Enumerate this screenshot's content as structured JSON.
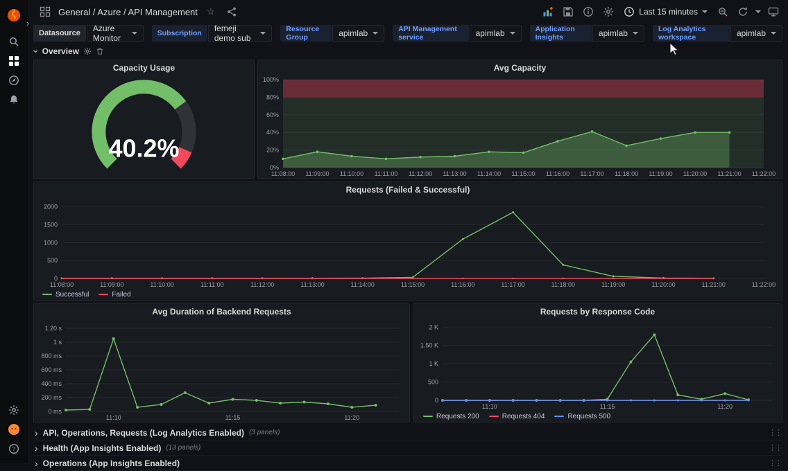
{
  "icons": {
    "star": "☆",
    "chevron": "›",
    "drag_handle": "⋮⋮",
    "help": "?"
  },
  "header": {
    "breadcrumb": "General / Azure / API Management",
    "time_range": "Last 15 minutes"
  },
  "variables": [
    {
      "label": "Datasource",
      "value": "Azure Monitor"
    },
    {
      "label": "Subscription",
      "value": "femeji demo sub"
    },
    {
      "label": "Resource Group",
      "value": "apimlab"
    },
    {
      "label": "API Management service",
      "value": "apimlab"
    },
    {
      "label": "Application Insights",
      "value": "apimlab"
    },
    {
      "label": "Log Analytics workspace",
      "value": "apimlab"
    }
  ],
  "row_overview": {
    "title": "Overview"
  },
  "collapsed_rows": [
    {
      "title": "API, Operations, Requests (Log Analytics Enabled)",
      "panels": "(3 panels)"
    },
    {
      "title": "Health (App Insights Enabled)",
      "panels": "(13 panels)"
    },
    {
      "title": "Operations (App Insights Enabled)",
      "panels": ""
    }
  ],
  "colors": {
    "green": "#73bf69",
    "red": "#f2495c",
    "blue": "#5794f2",
    "orange": "#ff780a"
  },
  "chart_data": [
    {
      "id": "gauge",
      "type": "gauge",
      "title": "Capacity Usage",
      "value": 40.2,
      "value_label": "40.2%",
      "min": 0,
      "max": 100,
      "segments": [
        {
          "frac": 0.7,
          "color": "#73bf69"
        },
        {
          "frac": 0.22,
          "color": "#2f3338"
        },
        {
          "frac": 0.08,
          "color": "#f2495c"
        }
      ]
    },
    {
      "id": "avg_capacity",
      "type": "area",
      "title": "Avg Capacity",
      "ml": 36,
      "mr": 26,
      "ylim": [
        0,
        100
      ],
      "x_max": 14,
      "yticks": [
        [
          0,
          "0%"
        ],
        [
          20,
          "20%"
        ],
        [
          40,
          "40%"
        ],
        [
          60,
          "60%"
        ],
        [
          80,
          "80%"
        ],
        [
          100,
          "100%"
        ]
      ],
      "xticks": [
        [
          0,
          "11:08:00"
        ],
        [
          1,
          "11:09:00"
        ],
        [
          2,
          "11:10:00"
        ],
        [
          3,
          "11:11:00"
        ],
        [
          4,
          "11:12:00"
        ],
        [
          5,
          "11:13:00"
        ],
        [
          6,
          "11:14:00"
        ],
        [
          7,
          "11:15:00"
        ],
        [
          8,
          "11:16:00"
        ],
        [
          9,
          "11:17:00"
        ],
        [
          10,
          "11:18:00"
        ],
        [
          11,
          "11:19:00"
        ],
        [
          12,
          "11:20:00"
        ],
        [
          13,
          "11:21:00"
        ],
        [
          14,
          "11:22:00"
        ]
      ],
      "regions": [
        {
          "from": 0,
          "to": 80,
          "color": "rgba(115,191,105,0.12)"
        },
        {
          "from": 80,
          "to": 100,
          "color": "rgba(242,73,92,0.38)"
        }
      ],
      "series": [
        {
          "name": "",
          "color": "#73bf69",
          "fill": "rgba(115,191,105,0.32)",
          "points": true,
          "pr": 1.8,
          "values": [
            10,
            18,
            13,
            10,
            12,
            13,
            18,
            17,
            30,
            41,
            25,
            33,
            40,
            40
          ]
        }
      ]
    },
    {
      "id": "requests",
      "type": "line",
      "title": "Requests (Failed & Successful)",
      "ml": 40,
      "mr": 26,
      "ylim": [
        0,
        2150
      ],
      "x_max": 14,
      "yticks": [
        [
          0,
          "0"
        ],
        [
          500,
          "500"
        ],
        [
          1000,
          "1000"
        ],
        [
          1500,
          "1500"
        ],
        [
          2000,
          "2000"
        ]
      ],
      "xticks": [
        [
          0,
          "11:08:00"
        ],
        [
          1,
          "11:09:00"
        ],
        [
          2,
          "11:10:00"
        ],
        [
          3,
          "11:11:00"
        ],
        [
          4,
          "11:12:00"
        ],
        [
          5,
          "11:13:00"
        ],
        [
          6,
          "11:14:00"
        ],
        [
          7,
          "11:15:00"
        ],
        [
          8,
          "11:16:00"
        ],
        [
          9,
          "11:17:00"
        ],
        [
          10,
          "11:18:00"
        ],
        [
          11,
          "11:19:00"
        ],
        [
          12,
          "11:20:00"
        ],
        [
          13,
          "11:21:00"
        ],
        [
          14,
          "11:22:00"
        ]
      ],
      "series": [
        {
          "name": "Successful",
          "color": "#73bf69",
          "points": true,
          "pr": 1.5,
          "values": [
            5,
            5,
            5,
            5,
            5,
            5,
            8,
            30,
            1100,
            1850,
            380,
            60,
            10,
            5
          ]
        },
        {
          "name": "Failed",
          "color": "#f2495c",
          "points": true,
          "pr": 1.2,
          "values": [
            0,
            0,
            0,
            0,
            0,
            0,
            0,
            0,
            0,
            0,
            0,
            0,
            0,
            0
          ]
        }
      ]
    },
    {
      "id": "duration",
      "type": "line",
      "title": "Avg Duration of Backend Requests",
      "ml": 46,
      "mr": 14,
      "ylim": [
        0,
        1270
      ],
      "x_max": 14,
      "yticks": [
        [
          0,
          "0 ms"
        ],
        [
          200,
          "200 ms"
        ],
        [
          400,
          "400 ms"
        ],
        [
          600,
          "600 ms"
        ],
        [
          800,
          "800 ms"
        ],
        [
          1000,
          "1 s"
        ],
        [
          1200,
          "1.20 s"
        ]
      ],
      "xticks": [
        [
          2,
          "11:10"
        ],
        [
          7,
          "11:15"
        ],
        [
          12,
          "11:20"
        ]
      ],
      "series": [
        {
          "name": "",
          "color": "#73bf69",
          "points": true,
          "pr": 2,
          "values": [
            20,
            30,
            1050,
            60,
            100,
            270,
            120,
            175,
            160,
            120,
            135,
            110,
            60,
            90
          ]
        }
      ]
    },
    {
      "id": "response_codes",
      "type": "line",
      "title": "Requests by Response Code",
      "ml": 42,
      "mr": 14,
      "ylim": [
        0,
        2100
      ],
      "x_max": 14,
      "yticks": [
        [
          0,
          "0"
        ],
        [
          500,
          "500"
        ],
        [
          1000,
          "1 K"
        ],
        [
          1500,
          "1.50 K"
        ],
        [
          2000,
          "2 K"
        ]
      ],
      "xticks": [
        [
          2,
          "11:10"
        ],
        [
          7,
          "11:15"
        ],
        [
          12,
          "11:20"
        ]
      ],
      "series": [
        {
          "name": "Requests 200",
          "color": "#73bf69",
          "points": true,
          "pr": 2,
          "values": [
            0,
            0,
            0,
            0,
            0,
            0,
            0,
            30,
            1050,
            1790,
            150,
            30,
            185,
            15
          ]
        },
        {
          "name": "Requests 404",
          "color": "#f2495c",
          "points": true,
          "pr": 1.5,
          "values": [
            0,
            0,
            0,
            0,
            0,
            0,
            0,
            0,
            0,
            0,
            0,
            0,
            0,
            0
          ]
        },
        {
          "name": "Requests 500",
          "color": "#5794f2",
          "points": true,
          "pr": 1.5,
          "values": [
            0,
            0,
            0,
            0,
            0,
            0,
            0,
            0,
            0,
            0,
            0,
            0,
            0,
            0
          ]
        }
      ]
    }
  ]
}
